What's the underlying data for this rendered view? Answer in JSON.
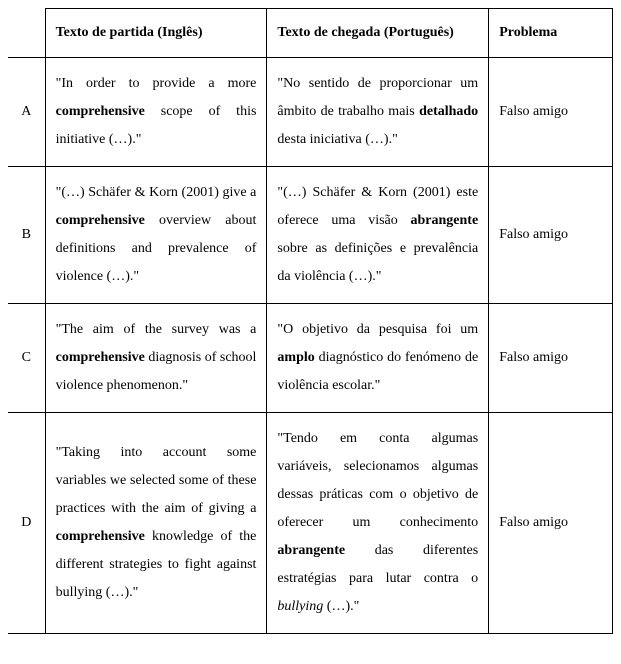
{
  "headers": {
    "label": "",
    "source": "Texto de partida (Inglês)",
    "target": "Texto de chegada (Português)",
    "problem": "Problema"
  },
  "rows": [
    {
      "label": "A",
      "source_pre": "\"In order to provide a more ",
      "source_bold": "comprehensive",
      "source_post": " scope of this initiative (…).\"",
      "target_pre": "\"No sentido de proporcionar um âmbito de trabalho mais ",
      "target_bold": "detalhado",
      "target_post": " desta iniciativa (…).\"",
      "problem": "Falso amigo"
    },
    {
      "label": "B",
      "source_pre": "\"(…) Schäfer & Korn (2001) give a ",
      "source_bold": "comprehensive",
      "source_post": " overview about definitions and prevalence of violence (…).\"",
      "target_pre": "\"(…) Schäfer & Korn (2001) este oferece uma visão ",
      "target_bold": "abrangente",
      "target_post": " sobre as definições e prevalência da violência (…).\"",
      "problem": "Falso amigo"
    },
    {
      "label": "C",
      "source_pre": "\"The aim of the survey was a ",
      "source_bold": "comprehensive",
      "source_post": " diagnosis of school violence phenomenon.\"",
      "target_pre": "\"O objetivo da pesquisa foi um ",
      "target_bold": "amplo",
      "target_post": " diagnóstico do fenómeno de violência escolar.\"",
      "problem": "Falso amigo"
    },
    {
      "label": "D",
      "source_pre": "\"Taking into account some variables we selected some of these practices with the aim of giving a ",
      "source_bold": "comprehensive",
      "source_post": " knowledge of the different strategies to fight against bullying (…).\"",
      "target_pre": "\"Tendo em conta algumas variáveis, selecionamos algumas dessas práticas com o objetivo de oferecer um conhecimento ",
      "target_bold": "abrangente",
      "target_post_1": " das diferentes estratégias para lutar contra o ",
      "target_italic": "bullying",
      "target_post_2": " (…).\"",
      "problem": "Falso amigo"
    }
  ]
}
